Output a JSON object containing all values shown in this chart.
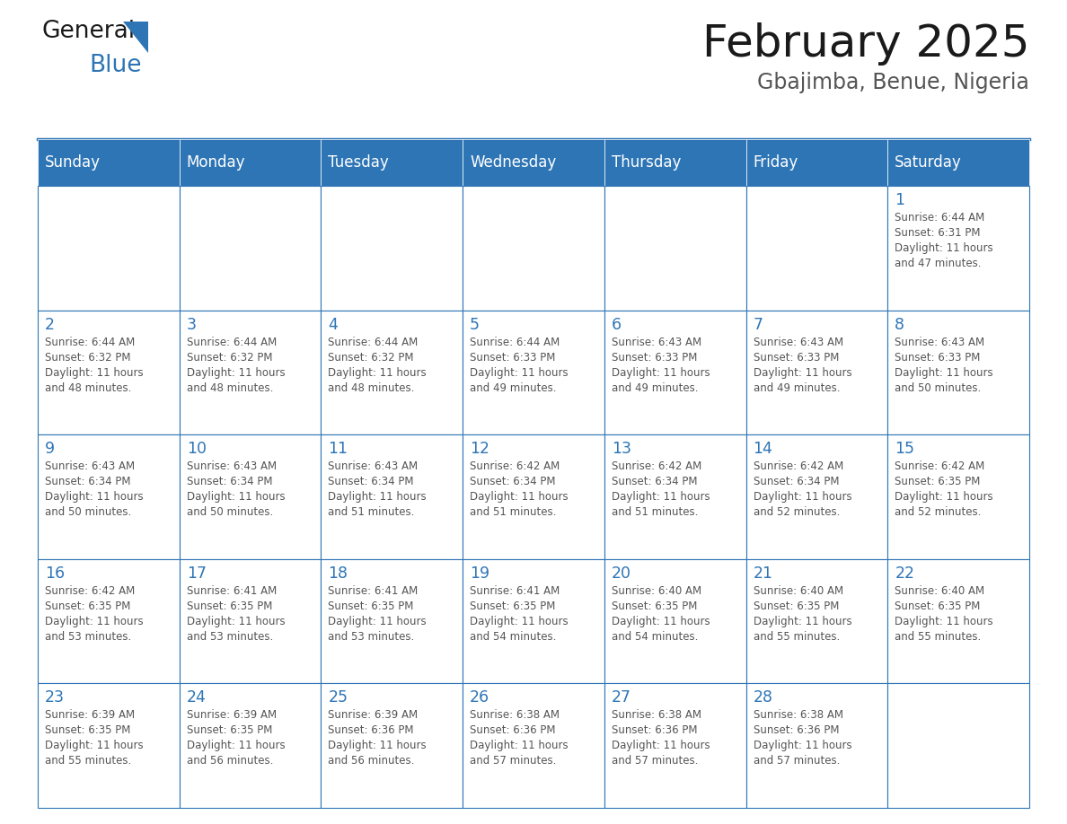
{
  "title": "February 2025",
  "subtitle": "Gbajimba, Benue, Nigeria",
  "header_bg": "#2E75B6",
  "header_text_color": "#FFFFFF",
  "grid_line_color": "#2E75B6",
  "day_number_color": "#2E75B6",
  "text_color": "#555555",
  "title_color": "#1a1a1a",
  "weekdays": [
    "Sunday",
    "Monday",
    "Tuesday",
    "Wednesday",
    "Thursday",
    "Friday",
    "Saturday"
  ],
  "calendar_data": [
    [
      null,
      null,
      null,
      null,
      null,
      null,
      {
        "day": 1,
        "sunrise": "6:44 AM",
        "sunset": "6:31 PM",
        "daylight_hours": 11,
        "daylight_minutes": 47
      }
    ],
    [
      {
        "day": 2,
        "sunrise": "6:44 AM",
        "sunset": "6:32 PM",
        "daylight_hours": 11,
        "daylight_minutes": 48
      },
      {
        "day": 3,
        "sunrise": "6:44 AM",
        "sunset": "6:32 PM",
        "daylight_hours": 11,
        "daylight_minutes": 48
      },
      {
        "day": 4,
        "sunrise": "6:44 AM",
        "sunset": "6:32 PM",
        "daylight_hours": 11,
        "daylight_minutes": 48
      },
      {
        "day": 5,
        "sunrise": "6:44 AM",
        "sunset": "6:33 PM",
        "daylight_hours": 11,
        "daylight_minutes": 49
      },
      {
        "day": 6,
        "sunrise": "6:43 AM",
        "sunset": "6:33 PM",
        "daylight_hours": 11,
        "daylight_minutes": 49
      },
      {
        "day": 7,
        "sunrise": "6:43 AM",
        "sunset": "6:33 PM",
        "daylight_hours": 11,
        "daylight_minutes": 49
      },
      {
        "day": 8,
        "sunrise": "6:43 AM",
        "sunset": "6:33 PM",
        "daylight_hours": 11,
        "daylight_minutes": 50
      }
    ],
    [
      {
        "day": 9,
        "sunrise": "6:43 AM",
        "sunset": "6:34 PM",
        "daylight_hours": 11,
        "daylight_minutes": 50
      },
      {
        "day": 10,
        "sunrise": "6:43 AM",
        "sunset": "6:34 PM",
        "daylight_hours": 11,
        "daylight_minutes": 50
      },
      {
        "day": 11,
        "sunrise": "6:43 AM",
        "sunset": "6:34 PM",
        "daylight_hours": 11,
        "daylight_minutes": 51
      },
      {
        "day": 12,
        "sunrise": "6:42 AM",
        "sunset": "6:34 PM",
        "daylight_hours": 11,
        "daylight_minutes": 51
      },
      {
        "day": 13,
        "sunrise": "6:42 AM",
        "sunset": "6:34 PM",
        "daylight_hours": 11,
        "daylight_minutes": 51
      },
      {
        "day": 14,
        "sunrise": "6:42 AM",
        "sunset": "6:34 PM",
        "daylight_hours": 11,
        "daylight_minutes": 52
      },
      {
        "day": 15,
        "sunrise": "6:42 AM",
        "sunset": "6:35 PM",
        "daylight_hours": 11,
        "daylight_minutes": 52
      }
    ],
    [
      {
        "day": 16,
        "sunrise": "6:42 AM",
        "sunset": "6:35 PM",
        "daylight_hours": 11,
        "daylight_minutes": 53
      },
      {
        "day": 17,
        "sunrise": "6:41 AM",
        "sunset": "6:35 PM",
        "daylight_hours": 11,
        "daylight_minutes": 53
      },
      {
        "day": 18,
        "sunrise": "6:41 AM",
        "sunset": "6:35 PM",
        "daylight_hours": 11,
        "daylight_minutes": 53
      },
      {
        "day": 19,
        "sunrise": "6:41 AM",
        "sunset": "6:35 PM",
        "daylight_hours": 11,
        "daylight_minutes": 54
      },
      {
        "day": 20,
        "sunrise": "6:40 AM",
        "sunset": "6:35 PM",
        "daylight_hours": 11,
        "daylight_minutes": 54
      },
      {
        "day": 21,
        "sunrise": "6:40 AM",
        "sunset": "6:35 PM",
        "daylight_hours": 11,
        "daylight_minutes": 55
      },
      {
        "day": 22,
        "sunrise": "6:40 AM",
        "sunset": "6:35 PM",
        "daylight_hours": 11,
        "daylight_minutes": 55
      }
    ],
    [
      {
        "day": 23,
        "sunrise": "6:39 AM",
        "sunset": "6:35 PM",
        "daylight_hours": 11,
        "daylight_minutes": 55
      },
      {
        "day": 24,
        "sunrise": "6:39 AM",
        "sunset": "6:35 PM",
        "daylight_hours": 11,
        "daylight_minutes": 56
      },
      {
        "day": 25,
        "sunrise": "6:39 AM",
        "sunset": "6:36 PM",
        "daylight_hours": 11,
        "daylight_minutes": 56
      },
      {
        "day": 26,
        "sunrise": "6:38 AM",
        "sunset": "6:36 PM",
        "daylight_hours": 11,
        "daylight_minutes": 57
      },
      {
        "day": 27,
        "sunrise": "6:38 AM",
        "sunset": "6:36 PM",
        "daylight_hours": 11,
        "daylight_minutes": 57
      },
      {
        "day": 28,
        "sunrise": "6:38 AM",
        "sunset": "6:36 PM",
        "daylight_hours": 11,
        "daylight_minutes": 57
      },
      null
    ]
  ],
  "fig_width": 11.88,
  "fig_height": 9.18,
  "dpi": 100
}
